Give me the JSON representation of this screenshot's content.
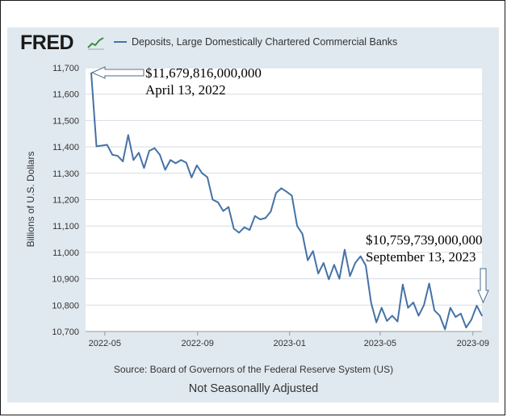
{
  "header": {
    "logo_text": "FRED",
    "logo_icon": "line-chart-icon",
    "series_title": "Deposits, Large Domestically Chartered Commercial Banks"
  },
  "footer": {
    "source": "Source: Board of Governors of the Federal Reserve System (US)",
    "seasonal_note": "Not Seasonallly Adjusted"
  },
  "colors": {
    "line": "#4572a7",
    "panel_bg": "#e1e9f0",
    "plot_bg": "#ffffff",
    "grid": "#d6dde4"
  },
  "annotations": [
    {
      "label": "$11,679,816,000,000",
      "date": "April 13, 2022"
    },
    {
      "label": "$10,759,739,000,000",
      "date": "September 13, 2023"
    }
  ],
  "chart_data": {
    "type": "line",
    "ylabel": "Billions of U.S. Dollars",
    "xlabel": "",
    "ylim": [
      10700,
      11700
    ],
    "yticks": [
      10700,
      10800,
      10900,
      11000,
      11100,
      11200,
      11300,
      11400,
      11500,
      11600,
      11700
    ],
    "ytick_labels": [
      "10,700",
      "10,800",
      "10,900",
      "11,000",
      "11,100",
      "11,200",
      "11,300",
      "11,400",
      "11,500",
      "11,600",
      "11,700"
    ],
    "xlim": [
      "2022-04-13",
      "2023-09-13"
    ],
    "xticks": [
      "2022-05-01",
      "2022-09-01",
      "2023-01-01",
      "2023-05-01",
      "2023-09-01"
    ],
    "xtick_labels": [
      "2022-05",
      "2022-09",
      "2023-01",
      "2023-05",
      "2023-09"
    ],
    "grid": "horizontal",
    "series": [
      {
        "name": "Deposits, Large Domestically Chartered Commercial Banks",
        "x": [
          "2022-04-13",
          "2022-04-20",
          "2022-04-27",
          "2022-05-04",
          "2022-05-11",
          "2022-05-18",
          "2022-05-25",
          "2022-06-01",
          "2022-06-08",
          "2022-06-15",
          "2022-06-22",
          "2022-06-29",
          "2022-07-06",
          "2022-07-13",
          "2022-07-20",
          "2022-07-27",
          "2022-08-03",
          "2022-08-10",
          "2022-08-17",
          "2022-08-24",
          "2022-08-31",
          "2022-09-07",
          "2022-09-14",
          "2022-09-21",
          "2022-09-28",
          "2022-10-05",
          "2022-10-12",
          "2022-10-19",
          "2022-10-26",
          "2022-11-02",
          "2022-11-09",
          "2022-11-16",
          "2022-11-23",
          "2022-11-30",
          "2022-12-07",
          "2022-12-14",
          "2022-12-21",
          "2022-12-28",
          "2023-01-04",
          "2023-01-11",
          "2023-01-18",
          "2023-01-25",
          "2023-02-01",
          "2023-02-08",
          "2023-02-15",
          "2023-02-22",
          "2023-03-01",
          "2023-03-08",
          "2023-03-15",
          "2023-03-22",
          "2023-03-29",
          "2023-04-05",
          "2023-04-12",
          "2023-04-19",
          "2023-04-26",
          "2023-05-03",
          "2023-05-10",
          "2023-05-17",
          "2023-05-24",
          "2023-05-31",
          "2023-06-07",
          "2023-06-14",
          "2023-06-21",
          "2023-06-28",
          "2023-07-05",
          "2023-07-12",
          "2023-07-19",
          "2023-07-26",
          "2023-08-02",
          "2023-08-09",
          "2023-08-16",
          "2023-08-23",
          "2023-08-30",
          "2023-09-06",
          "2023-09-13"
        ],
        "values": [
          11680,
          11402,
          11405,
          11408,
          11370,
          11366,
          11345,
          11445,
          11350,
          11378,
          11320,
          11385,
          11395,
          11370,
          11313,
          11350,
          11338,
          11350,
          11340,
          11284,
          11330,
          11300,
          11285,
          11200,
          11190,
          11157,
          11172,
          11090,
          11075,
          11095,
          11085,
          11138,
          11125,
          11130,
          11155,
          11225,
          11243,
          11230,
          11215,
          11100,
          11070,
          10970,
          11005,
          10920,
          10960,
          10898,
          10953,
          10900,
          11010,
          10910,
          10960,
          10985,
          10950,
          10810,
          10735,
          10790,
          10740,
          10760,
          10738,
          10878,
          10790,
          10810,
          10760,
          10800,
          10882,
          10780,
          10760,
          10708,
          10790,
          10755,
          10768,
          10715,
          10745,
          10798,
          10760
        ]
      }
    ]
  }
}
